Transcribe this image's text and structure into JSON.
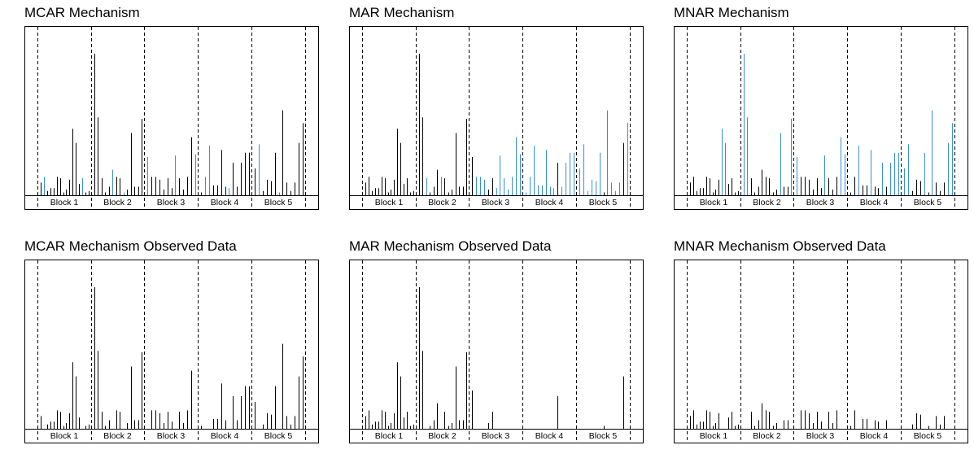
{
  "colors": {
    "observed": "#000000",
    "missing": "#3a8fd4",
    "frame": "#000000",
    "divider": "#000000"
  },
  "chart_data": [
    {
      "type": "bar",
      "title": "MCAR Mechanism",
      "blocks": [
        "Block 1",
        "Block 2",
        "Block 3",
        "Block 4",
        "Block 5"
      ],
      "values": [
        0.09,
        0.13,
        0.03,
        0.05,
        0.05,
        0.13,
        0.12,
        0.02,
        0.04,
        0.11,
        0.47,
        0.37,
        0.08,
        0.12,
        0.02,
        0.03,
        1.0,
        0.55,
        0.12,
        0.02,
        0.06,
        0.18,
        0.13,
        0.12,
        0.02,
        0.04,
        0.44,
        0.06,
        0.06,
        0.54,
        0.27,
        0.13,
        0.13,
        0.11,
        0.04,
        0.12,
        0.05,
        0.28,
        0.12,
        0.04,
        0.13,
        0.41,
        0.29,
        0.02,
        0.13,
        0.35,
        0.07,
        0.07,
        0.32,
        0.06,
        0.05,
        0.23,
        0.06,
        0.23,
        0.3,
        0.3,
        0.19,
        0.36,
        0.03,
        0.11,
        0.1,
        0.3,
        0.02,
        0.6,
        0.09,
        0.03,
        0.09,
        0.37,
        0.51
      ],
      "missing": [
        0,
        1,
        0,
        0,
        0,
        0,
        0,
        0,
        0,
        0,
        0,
        0,
        0,
        1,
        0,
        0,
        0,
        0,
        0,
        0,
        0,
        1,
        0,
        0,
        1,
        0,
        0,
        0,
        0,
        0,
        1,
        0,
        0,
        0,
        0,
        0,
        0,
        1,
        0,
        0,
        0,
        0,
        1,
        0,
        1,
        1,
        0,
        0,
        0,
        0,
        1,
        0,
        0,
        0,
        0,
        0,
        0,
        1,
        0,
        0,
        0,
        0,
        1,
        0,
        0,
        0,
        0,
        0,
        0
      ]
    },
    {
      "type": "bar",
      "title": "MAR Mechanism",
      "blocks": [
        "Block 1",
        "Block 2",
        "Block 3",
        "Block 4",
        "Block 5"
      ],
      "values": [
        0.09,
        0.13,
        0.03,
        0.05,
        0.05,
        0.13,
        0.12,
        0.02,
        0.04,
        0.11,
        0.47,
        0.37,
        0.08,
        0.12,
        0.02,
        0.03,
        1.0,
        0.55,
        0.12,
        0.02,
        0.06,
        0.18,
        0.13,
        0.12,
        0.02,
        0.04,
        0.44,
        0.06,
        0.06,
        0.54,
        0.27,
        0.13,
        0.13,
        0.11,
        0.04,
        0.12,
        0.05,
        0.28,
        0.12,
        0.04,
        0.13,
        0.41,
        0.29,
        0.02,
        0.13,
        0.35,
        0.07,
        0.07,
        0.32,
        0.06,
        0.05,
        0.23,
        0.06,
        0.23,
        0.3,
        0.3,
        0.19,
        0.36,
        0.03,
        0.11,
        0.1,
        0.3,
        0.02,
        0.6,
        0.09,
        0.03,
        0.09,
        0.37,
        0.51
      ],
      "missing": [
        0,
        0,
        0,
        0,
        0,
        0,
        0,
        0,
        0,
        0,
        0,
        0,
        0,
        0,
        0,
        0,
        0,
        0,
        1,
        0,
        0,
        0,
        1,
        0,
        0,
        0,
        0,
        0,
        0,
        0,
        0,
        1,
        1,
        1,
        0,
        0,
        1,
        1,
        1,
        1,
        1,
        1,
        1,
        1,
        1,
        1,
        1,
        1,
        1,
        1,
        1,
        0,
        1,
        1,
        1,
        1,
        1,
        1,
        1,
        1,
        1,
        1,
        0,
        1,
        1,
        1,
        1,
        0,
        1
      ]
    },
    {
      "type": "bar",
      "title": "MNAR Mechanism",
      "blocks": [
        "Block 1",
        "Block 2",
        "Block 3",
        "Block 4",
        "Block 5"
      ],
      "values": [
        0.09,
        0.13,
        0.03,
        0.05,
        0.05,
        0.13,
        0.12,
        0.02,
        0.04,
        0.11,
        0.47,
        0.37,
        0.08,
        0.12,
        0.02,
        0.03,
        1.0,
        0.55,
        0.12,
        0.02,
        0.06,
        0.18,
        0.13,
        0.12,
        0.02,
        0.04,
        0.44,
        0.06,
        0.06,
        0.54,
        0.27,
        0.13,
        0.13,
        0.11,
        0.04,
        0.12,
        0.05,
        0.28,
        0.12,
        0.04,
        0.13,
        0.41,
        0.29,
        0.02,
        0.13,
        0.35,
        0.07,
        0.07,
        0.32,
        0.06,
        0.05,
        0.23,
        0.06,
        0.23,
        0.3,
        0.3,
        0.19,
        0.36,
        0.03,
        0.11,
        0.1,
        0.3,
        0.02,
        0.6,
        0.09,
        0.03,
        0.09,
        0.37,
        0.51
      ],
      "missing": [
        0,
        0,
        0,
        0,
        0,
        0,
        0,
        0,
        0,
        0,
        1,
        1,
        0,
        0,
        0,
        0,
        1,
        1,
        0,
        0,
        0,
        0,
        0,
        0,
        0,
        0,
        1,
        0,
        0,
        1,
        1,
        0,
        0,
        0,
        0,
        0,
        0,
        1,
        0,
        0,
        0,
        1,
        1,
        0,
        0,
        1,
        0,
        0,
        1,
        0,
        0,
        1,
        0,
        1,
        1,
        1,
        1,
        1,
        0,
        0,
        0,
        1,
        0,
        1,
        0,
        0,
        0,
        1,
        1
      ]
    },
    {
      "type": "bar",
      "title": "MCAR Mechanism Observed Data",
      "blocks": [
        "Block 1",
        "Block 2",
        "Block 3",
        "Block 4",
        "Block 5"
      ],
      "values": [
        0.09,
        0.13,
        0.03,
        0.05,
        0.05,
        0.13,
        0.12,
        0.02,
        0.04,
        0.11,
        0.47,
        0.37,
        0.08,
        0.12,
        0.02,
        0.03,
        1.0,
        0.55,
        0.12,
        0.02,
        0.06,
        0.18,
        0.13,
        0.12,
        0.02,
        0.04,
        0.44,
        0.06,
        0.06,
        0.54,
        0.27,
        0.13,
        0.13,
        0.11,
        0.04,
        0.12,
        0.05,
        0.28,
        0.12,
        0.04,
        0.13,
        0.41,
        0.29,
        0.02,
        0.13,
        0.35,
        0.07,
        0.07,
        0.32,
        0.06,
        0.05,
        0.23,
        0.06,
        0.23,
        0.3,
        0.3,
        0.19,
        0.36,
        0.03,
        0.11,
        0.1,
        0.3,
        0.02,
        0.6,
        0.09,
        0.03,
        0.09,
        0.37,
        0.51
      ],
      "missing": [
        0,
        1,
        0,
        0,
        0,
        0,
        0,
        0,
        0,
        0,
        0,
        0,
        0,
        1,
        0,
        0,
        0,
        0,
        0,
        0,
        0,
        1,
        0,
        0,
        1,
        0,
        0,
        0,
        0,
        0,
        1,
        0,
        0,
        0,
        0,
        0,
        0,
        1,
        0,
        0,
        0,
        0,
        1,
        0,
        1,
        1,
        0,
        0,
        0,
        0,
        1,
        0,
        0,
        0,
        0,
        0,
        0,
        1,
        0,
        0,
        0,
        0,
        1,
        0,
        0,
        0,
        0,
        0,
        0
      ],
      "observed_only": true
    },
    {
      "type": "bar",
      "title": "MAR Mechanism Observed Data",
      "blocks": [
        "Block 1",
        "Block 2",
        "Block 3",
        "Block 4",
        "Block 5"
      ],
      "values": [
        0.09,
        0.13,
        0.03,
        0.05,
        0.05,
        0.13,
        0.12,
        0.02,
        0.04,
        0.11,
        0.47,
        0.37,
        0.08,
        0.12,
        0.02,
        0.03,
        1.0,
        0.55,
        0.12,
        0.02,
        0.06,
        0.18,
        0.13,
        0.12,
        0.02,
        0.04,
        0.44,
        0.06,
        0.06,
        0.54,
        0.27,
        0.13,
        0.13,
        0.11,
        0.04,
        0.12,
        0.05,
        0.28,
        0.12,
        0.04,
        0.13,
        0.41,
        0.29,
        0.02,
        0.13,
        0.35,
        0.07,
        0.07,
        0.32,
        0.06,
        0.05,
        0.23,
        0.06,
        0.23,
        0.3,
        0.3,
        0.19,
        0.36,
        0.03,
        0.11,
        0.1,
        0.3,
        0.02,
        0.6,
        0.09,
        0.03,
        0.09,
        0.37,
        0.51
      ],
      "missing": [
        0,
        0,
        0,
        0,
        0,
        0,
        0,
        0,
        0,
        0,
        0,
        0,
        0,
        0,
        0,
        0,
        0,
        0,
        1,
        0,
        0,
        0,
        1,
        0,
        0,
        0,
        0,
        0,
        0,
        0,
        0,
        1,
        1,
        1,
        0,
        0,
        1,
        1,
        1,
        1,
        1,
        1,
        1,
        1,
        1,
        1,
        1,
        1,
        1,
        1,
        1,
        0,
        1,
        1,
        1,
        1,
        1,
        1,
        1,
        1,
        1,
        1,
        0,
        1,
        1,
        1,
        1,
        0,
        1
      ],
      "observed_only": true
    },
    {
      "type": "bar",
      "title": "MNAR Mechanism Observed Data",
      "blocks": [
        "Block 1",
        "Block 2",
        "Block 3",
        "Block 4",
        "Block 5"
      ],
      "values": [
        0.09,
        0.13,
        0.03,
        0.05,
        0.05,
        0.13,
        0.12,
        0.02,
        0.04,
        0.11,
        0.47,
        0.37,
        0.08,
        0.12,
        0.02,
        0.03,
        1.0,
        0.55,
        0.12,
        0.02,
        0.06,
        0.18,
        0.13,
        0.12,
        0.02,
        0.04,
        0.44,
        0.06,
        0.06,
        0.54,
        0.27,
        0.13,
        0.13,
        0.11,
        0.04,
        0.12,
        0.05,
        0.28,
        0.12,
        0.04,
        0.13,
        0.41,
        0.29,
        0.02,
        0.13,
        0.35,
        0.07,
        0.07,
        0.32,
        0.06,
        0.05,
        0.23,
        0.06,
        0.23,
        0.3,
        0.3,
        0.19,
        0.36,
        0.03,
        0.11,
        0.1,
        0.3,
        0.02,
        0.6,
        0.09,
        0.03,
        0.09,
        0.37,
        0.51
      ],
      "missing": [
        0,
        0,
        0,
        0,
        0,
        0,
        0,
        0,
        0,
        0,
        1,
        1,
        0,
        0,
        0,
        0,
        1,
        1,
        0,
        0,
        0,
        0,
        0,
        0,
        0,
        0,
        1,
        0,
        0,
        1,
        1,
        0,
        0,
        0,
        0,
        0,
        0,
        1,
        0,
        0,
        0,
        1,
        1,
        0,
        0,
        1,
        0,
        0,
        1,
        0,
        0,
        1,
        0,
        1,
        1,
        1,
        1,
        1,
        0,
        0,
        0,
        1,
        0,
        1,
        0,
        0,
        0,
        1,
        1
      ],
      "observed_only": true
    }
  ]
}
